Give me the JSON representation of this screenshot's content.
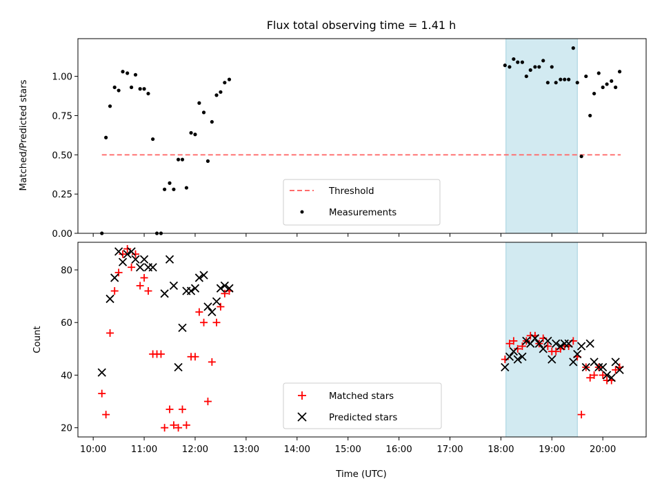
{
  "chart_data": [
    {
      "type": "scatter",
      "title": "Flux total observing time = 1.41 h",
      "ylabel": "Matched/Predicted stars",
      "xlabel": "",
      "xlim": [
        9.7,
        20.85
      ],
      "ylim": [
        0.0,
        1.24
      ],
      "yticks": [
        0.0,
        0.25,
        0.5,
        0.75,
        1.0
      ],
      "ytick_labels": [
        "0.00",
        "0.25",
        "0.50",
        "0.75",
        "1.00"
      ],
      "shaded_span": [
        18.1,
        19.5
      ],
      "shaded_color": "#add8e6",
      "legend": {
        "placement": "lower-center",
        "entries": [
          "Threshold",
          "Measurements"
        ]
      },
      "threshold": {
        "name": "Threshold",
        "x": [
          10.17,
          20.35
        ],
        "y": 0.5,
        "color": "#ff6b6b",
        "style": "dashed"
      },
      "series": [
        {
          "name": "Measurements",
          "color": "#000000",
          "marker": "dot",
          "points": [
            [
              10.17,
              0.0
            ],
            [
              10.25,
              0.61
            ],
            [
              10.33,
              0.81
            ],
            [
              10.42,
              0.93
            ],
            [
              10.5,
              0.91
            ],
            [
              10.58,
              1.03
            ],
            [
              10.67,
              1.02
            ],
            [
              10.75,
              0.93
            ],
            [
              10.83,
              1.01
            ],
            [
              10.92,
              0.92
            ],
            [
              11.0,
              0.92
            ],
            [
              11.08,
              0.89
            ],
            [
              11.17,
              0.6
            ],
            [
              11.25,
              0.0
            ],
            [
              11.33,
              0.0
            ],
            [
              11.4,
              0.28
            ],
            [
              11.5,
              0.32
            ],
            [
              11.58,
              0.28
            ],
            [
              11.67,
              0.47
            ],
            [
              11.75,
              0.47
            ],
            [
              11.83,
              0.29
            ],
            [
              11.92,
              0.64
            ],
            [
              12.0,
              0.63
            ],
            [
              12.08,
              0.83
            ],
            [
              12.17,
              0.77
            ],
            [
              12.25,
              0.46
            ],
            [
              12.33,
              0.71
            ],
            [
              12.42,
              0.88
            ],
            [
              12.5,
              0.9
            ],
            [
              12.58,
              0.96
            ],
            [
              12.67,
              0.98
            ],
            [
              18.08,
              1.07
            ],
            [
              18.17,
              1.06
            ],
            [
              18.25,
              1.11
            ],
            [
              18.33,
              1.09
            ],
            [
              18.42,
              1.09
            ],
            [
              18.5,
              1.0
            ],
            [
              18.58,
              1.04
            ],
            [
              18.67,
              1.06
            ],
            [
              18.75,
              1.06
            ],
            [
              18.83,
              1.1
            ],
            [
              18.92,
              0.96
            ],
            [
              19.0,
              1.06
            ],
            [
              19.08,
              0.96
            ],
            [
              19.17,
              0.98
            ],
            [
              19.25,
              0.98
            ],
            [
              19.33,
              0.98
            ],
            [
              19.42,
              1.18
            ],
            [
              19.5,
              0.96
            ],
            [
              19.58,
              0.49
            ],
            [
              19.67,
              1.0
            ],
            [
              19.75,
              0.75
            ],
            [
              19.83,
              0.89
            ],
            [
              19.92,
              1.02
            ],
            [
              20.0,
              0.93
            ],
            [
              20.08,
              0.95
            ],
            [
              20.17,
              0.97
            ],
            [
              20.25,
              0.93
            ],
            [
              20.33,
              1.03
            ]
          ]
        }
      ]
    },
    {
      "type": "scatter",
      "title": "",
      "ylabel": "Count",
      "xlabel": "Time (UTC)",
      "xlim": [
        9.7,
        20.85
      ],
      "ylim": [
        16.5,
        90.5
      ],
      "yticks": [
        20,
        40,
        60,
        80
      ],
      "ytick_labels": [
        "20",
        "40",
        "60",
        "80"
      ],
      "xticks": [
        10,
        11,
        12,
        13,
        14,
        15,
        16,
        17,
        18,
        19,
        20
      ],
      "xtick_labels": [
        "10:00",
        "11:00",
        "12:00",
        "13:00",
        "14:00",
        "15:00",
        "16:00",
        "17:00",
        "18:00",
        "19:00",
        "20:00"
      ],
      "shaded_span": [
        18.1,
        19.5
      ],
      "shaded_color": "#add8e6",
      "legend": {
        "placement": "lower-center",
        "entries": [
          "Matched stars",
          "Predicted stars"
        ]
      },
      "series": [
        {
          "name": "Matched stars",
          "color": "#ff0000",
          "marker": "plus",
          "points": [
            [
              10.17,
              33
            ],
            [
              10.25,
              25
            ],
            [
              10.33,
              56
            ],
            [
              10.42,
              72
            ],
            [
              10.5,
              79
            ],
            [
              10.58,
              86
            ],
            [
              10.67,
              88
            ],
            [
              10.75,
              81
            ],
            [
              10.83,
              86
            ],
            [
              10.92,
              74
            ],
            [
              11.0,
              77
            ],
            [
              11.08,
              72
            ],
            [
              11.17,
              48
            ],
            [
              11.25,
              48
            ],
            [
              11.33,
              48
            ],
            [
              11.4,
              20
            ],
            [
              11.5,
              27
            ],
            [
              11.58,
              21
            ],
            [
              11.67,
              20
            ],
            [
              11.75,
              27
            ],
            [
              11.83,
              21
            ],
            [
              11.92,
              47
            ],
            [
              12.0,
              47
            ],
            [
              12.08,
              64
            ],
            [
              12.17,
              60
            ],
            [
              12.25,
              30
            ],
            [
              12.33,
              45
            ],
            [
              12.42,
              60
            ],
            [
              12.5,
              66
            ],
            [
              12.58,
              71
            ],
            [
              12.67,
              72
            ],
            [
              18.08,
              46
            ],
            [
              18.17,
              52
            ],
            [
              18.25,
              53
            ],
            [
              18.33,
              50
            ],
            [
              18.42,
              51
            ],
            [
              18.5,
              53
            ],
            [
              18.58,
              55
            ],
            [
              18.67,
              55
            ],
            [
              18.75,
              52
            ],
            [
              18.83,
              54
            ],
            [
              18.92,
              51
            ],
            [
              19.0,
              49
            ],
            [
              19.08,
              49
            ],
            [
              19.17,
              50
            ],
            [
              19.25,
              51
            ],
            [
              19.33,
              51
            ],
            [
              19.42,
              53
            ],
            [
              19.5,
              47
            ],
            [
              19.58,
              25
            ],
            [
              19.67,
              43
            ],
            [
              19.75,
              39
            ],
            [
              19.83,
              40
            ],
            [
              19.92,
              43
            ],
            [
              20.0,
              40
            ],
            [
              20.08,
              38
            ],
            [
              20.17,
              38
            ],
            [
              20.25,
              42
            ],
            [
              20.33,
              43
            ]
          ]
        },
        {
          "name": "Predicted stars",
          "color": "#000000",
          "marker": "x",
          "points": [
            [
              10.17,
              41
            ],
            [
              10.33,
              69
            ],
            [
              10.42,
              77
            ],
            [
              10.5,
              87
            ],
            [
              10.58,
              83
            ],
            [
              10.67,
              86
            ],
            [
              10.75,
              87
            ],
            [
              10.83,
              84
            ],
            [
              10.92,
              81
            ],
            [
              11.0,
              84
            ],
            [
              11.08,
              81
            ],
            [
              11.17,
              81
            ],
            [
              11.4,
              71
            ],
            [
              11.5,
              84
            ],
            [
              11.58,
              74
            ],
            [
              11.67,
              43
            ],
            [
              11.75,
              58
            ],
            [
              11.83,
              72
            ],
            [
              11.92,
              72
            ],
            [
              12.0,
              73
            ],
            [
              12.08,
              77
            ],
            [
              12.17,
              78
            ],
            [
              12.25,
              66
            ],
            [
              12.33,
              64
            ],
            [
              12.42,
              68
            ],
            [
              12.5,
              73
            ],
            [
              12.58,
              74
            ],
            [
              12.67,
              73
            ],
            [
              18.08,
              43
            ],
            [
              18.17,
              47
            ],
            [
              18.25,
              49
            ],
            [
              18.33,
              46
            ],
            [
              18.42,
              47
            ],
            [
              18.5,
              53
            ],
            [
              18.58,
              52
            ],
            [
              18.67,
              54
            ],
            [
              18.75,
              52
            ],
            [
              18.83,
              50
            ],
            [
              18.92,
              53
            ],
            [
              19.0,
              46
            ],
            [
              19.08,
              52
            ],
            [
              19.17,
              51
            ],
            [
              19.25,
              52
            ],
            [
              19.33,
              52
            ],
            [
              19.42,
              45
            ],
            [
              19.5,
              48
            ],
            [
              19.58,
              51
            ],
            [
              19.67,
              43
            ],
            [
              19.75,
              52
            ],
            [
              19.83,
              45
            ],
            [
              19.92,
              43
            ],
            [
              20.0,
              43
            ],
            [
              20.08,
              40
            ],
            [
              20.17,
              39
            ],
            [
              20.25,
              45
            ],
            [
              20.33,
              42
            ]
          ]
        }
      ]
    }
  ]
}
